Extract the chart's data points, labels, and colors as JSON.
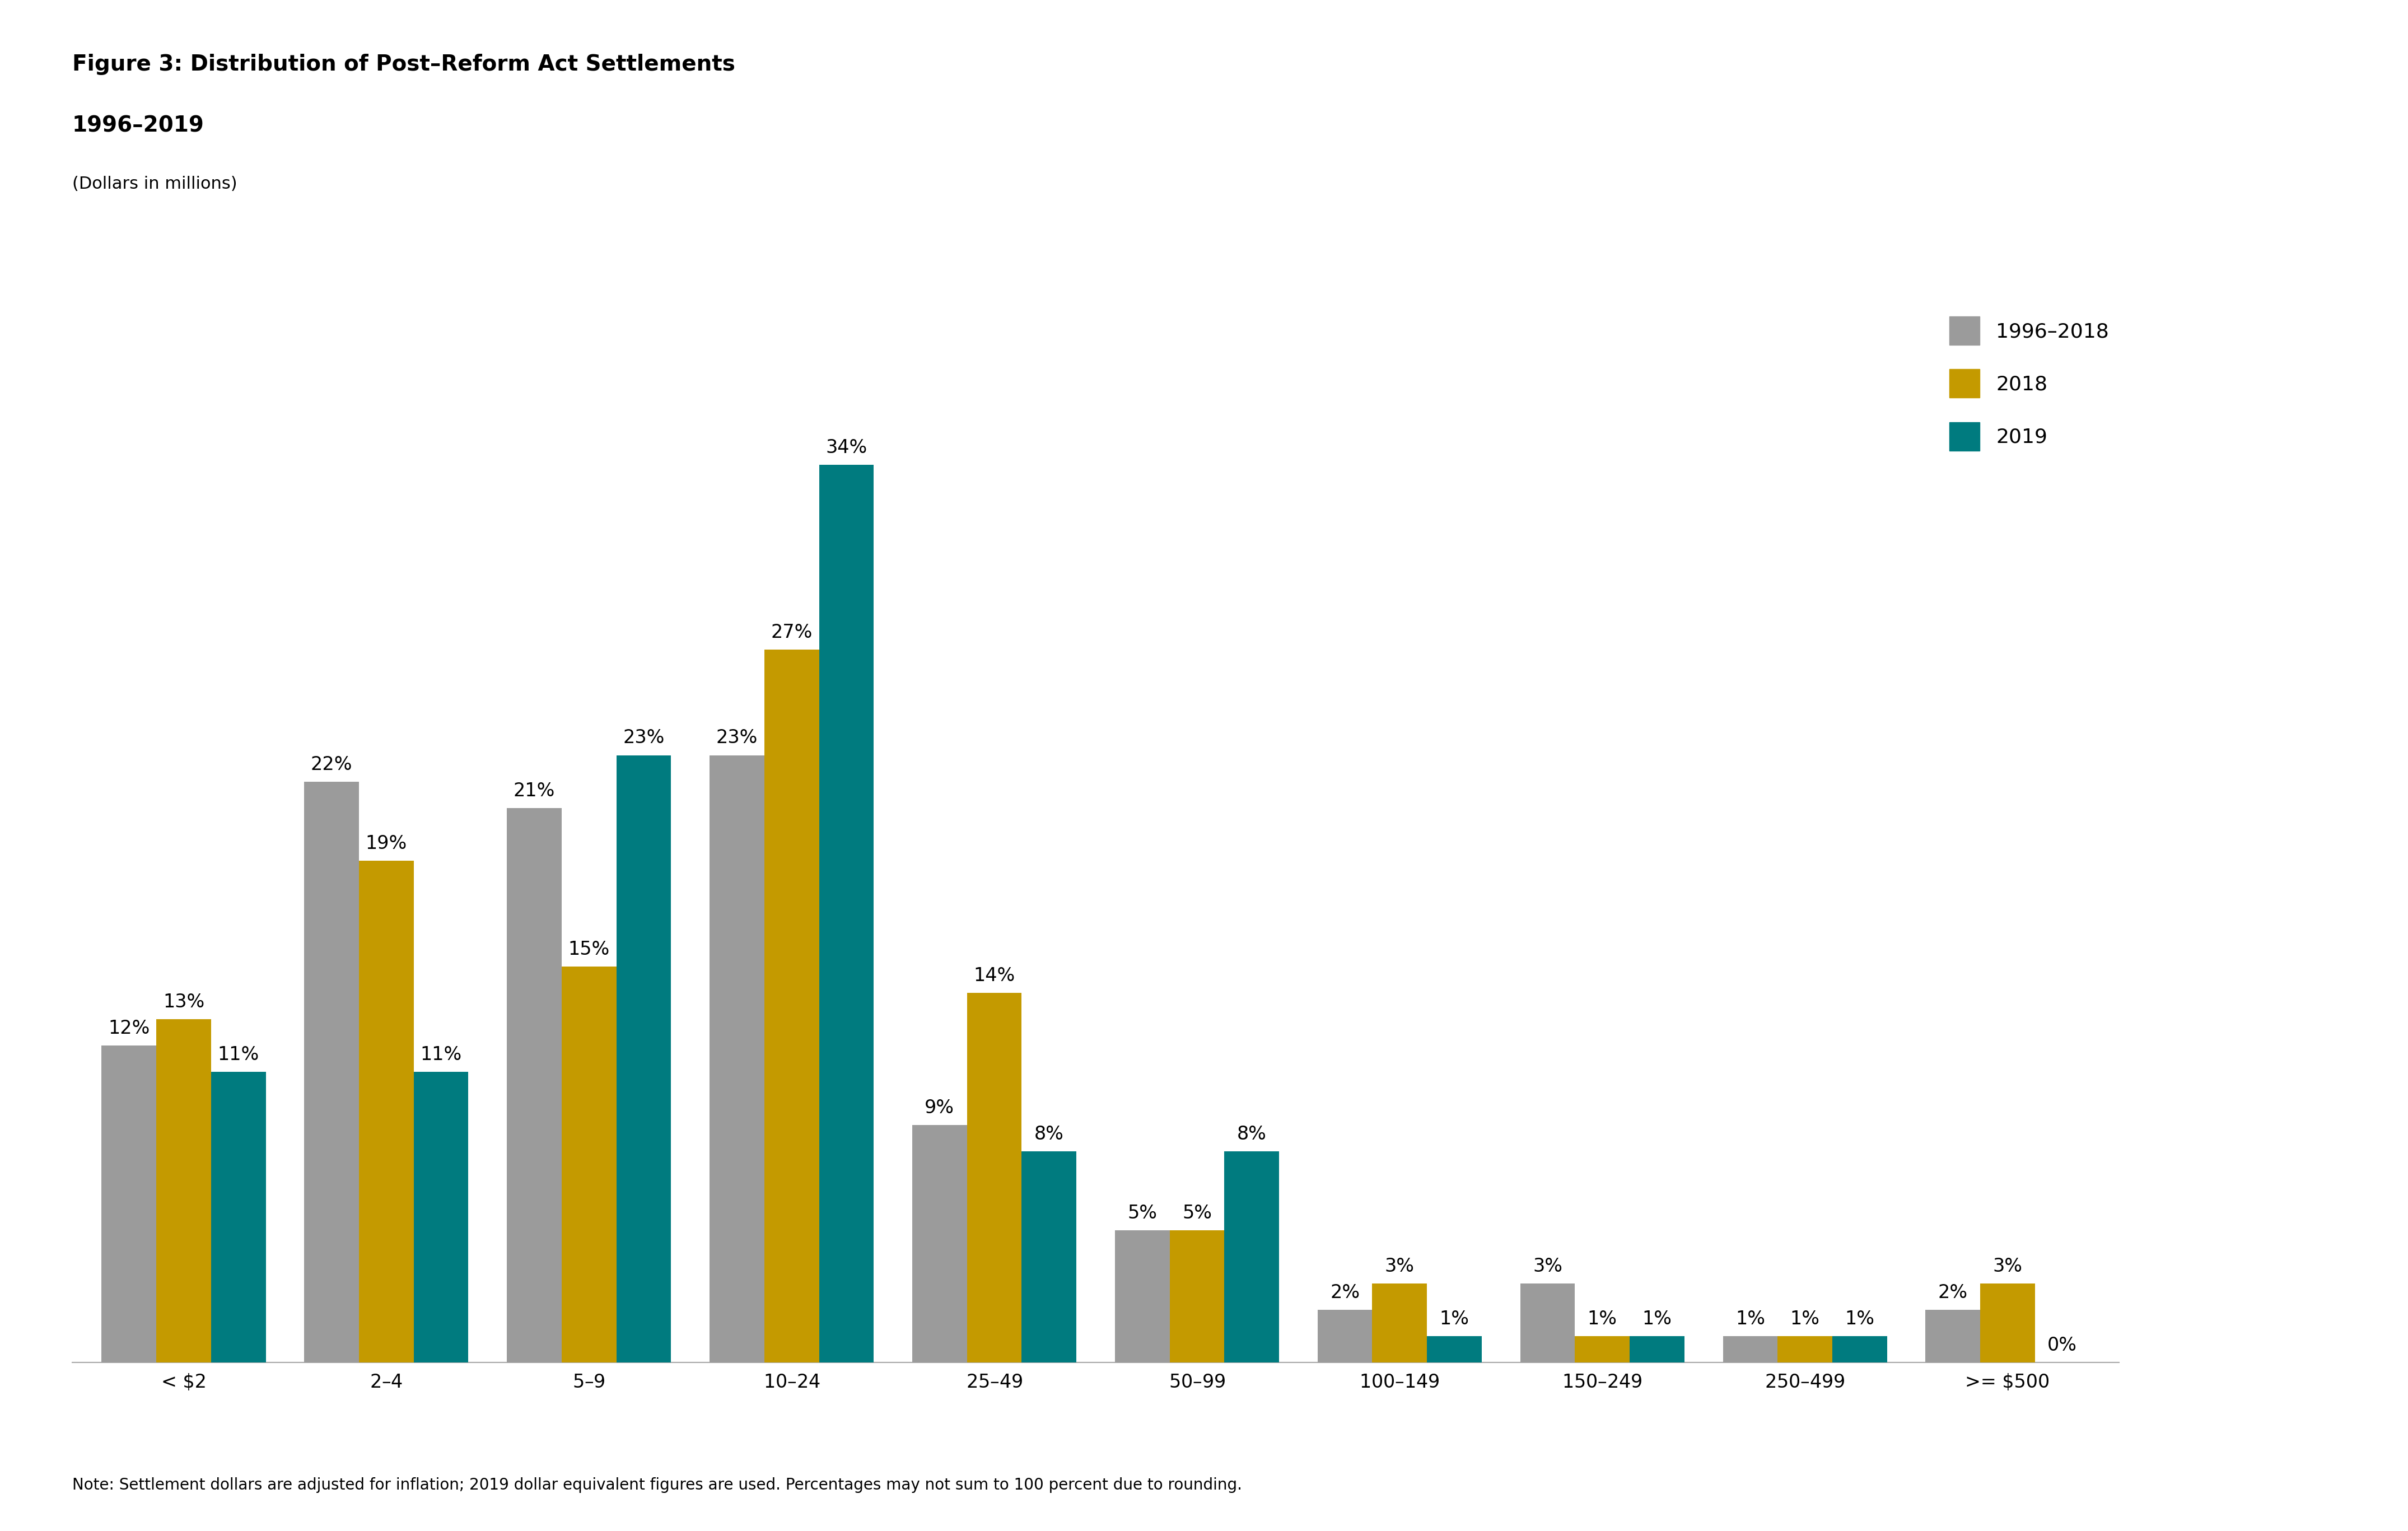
{
  "title_line1": "Figure 3: Distribution of Post–Reform Act Settlements",
  "title_line2": "1996–2019",
  "subtitle": "(Dollars in millions)",
  "note": "Note: Settlement dollars are adjusted for inflation; 2019 dollar equivalent figures are used. Percentages may not sum to 100 percent due to rounding.",
  "categories": [
    "< $2",
    "$2–$4",
    "$5–$9",
    "$10–$24",
    "$25–$49",
    "$50–$99",
    "$100–$149",
    "$150–$249",
    "$250–$499",
    ">= $500"
  ],
  "series": {
    "1996–2018": [
      12,
      22,
      21,
      23,
      9,
      5,
      2,
      3,
      1,
      2
    ],
    "2018": [
      13,
      19,
      15,
      27,
      14,
      5,
      3,
      1,
      1,
      3
    ],
    "2019": [
      11,
      11,
      23,
      34,
      8,
      8,
      1,
      1,
      1,
      0
    ]
  },
  "colors": {
    "1996–2018": "#9B9B9B",
    "2018": "#C49A00",
    "2019": "#007B7F"
  },
  "legend_labels": [
    "1996–2018",
    "2018",
    "2019"
  ],
  "ylim": [
    0,
    40
  ],
  "bar_width": 0.27,
  "background_color": "#FFFFFF",
  "label_fontsize": 24,
  "tick_fontsize": 24,
  "title_fontsize": 28,
  "subtitle_fontsize": 22,
  "note_fontsize": 20,
  "legend_fontsize": 26
}
